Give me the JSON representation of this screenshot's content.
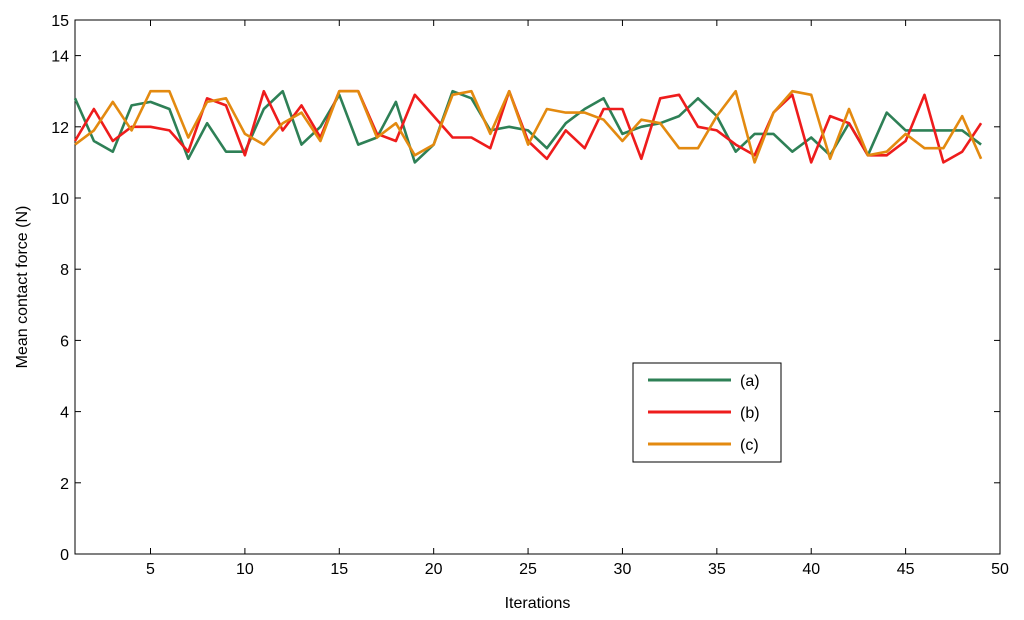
{
  "chart_data": {
    "type": "line",
    "xlabel": "Iterations",
    "ylabel": "Mean contact force (N)",
    "xlim": [
      1,
      50
    ],
    "ylim": [
      0,
      15
    ],
    "xticks": [
      5,
      10,
      15,
      20,
      25,
      30,
      35,
      40,
      45,
      50
    ],
    "yticks": [
      0,
      2,
      4,
      6,
      8,
      10,
      12,
      14,
      15
    ],
    "grid": false,
    "legend_position": "center-right",
    "x": [
      1,
      2,
      3,
      4,
      5,
      6,
      7,
      8,
      9,
      10,
      11,
      12,
      13,
      14,
      15,
      16,
      17,
      18,
      19,
      20,
      21,
      22,
      23,
      24,
      25,
      26,
      27,
      28,
      29,
      30,
      31,
      32,
      33,
      34,
      35,
      36,
      37,
      38,
      39,
      40,
      41,
      42,
      43,
      44,
      45,
      46,
      47,
      48,
      49
    ],
    "series": [
      {
        "name": "(a)",
        "color": "#2e8056",
        "values": [
          12.8,
          11.6,
          11.3,
          12.6,
          12.7,
          12.5,
          11.1,
          12.1,
          11.3,
          11.3,
          12.5,
          13.0,
          11.5,
          12.0,
          12.9,
          11.5,
          11.7,
          12.7,
          11.0,
          11.5,
          13.0,
          12.8,
          11.9,
          12.0,
          11.9,
          11.4,
          12.1,
          12.5,
          12.8,
          11.8,
          12.0,
          12.1,
          12.3,
          12.8,
          12.3,
          11.3,
          11.8,
          11.8,
          11.3,
          11.7,
          11.2,
          12.1,
          11.2,
          12.4,
          11.9,
          11.9,
          11.9,
          11.9,
          11.5
        ]
      },
      {
        "name": "(b)",
        "color": "#ee1c1c",
        "values": [
          11.6,
          12.5,
          11.6,
          12.0,
          12.0,
          11.9,
          11.3,
          12.8,
          12.6,
          11.2,
          13.0,
          11.9,
          12.6,
          11.7,
          13.0,
          13.0,
          11.8,
          11.6,
          12.9,
          12.3,
          11.7,
          11.7,
          11.4,
          13.0,
          11.6,
          11.1,
          11.9,
          11.4,
          12.5,
          12.5,
          11.1,
          12.8,
          12.9,
          12.0,
          11.9,
          11.5,
          11.2,
          12.4,
          12.9,
          11.0,
          12.3,
          12.1,
          11.2,
          11.2,
          11.6,
          12.9,
          11.0,
          11.3,
          12.1
        ]
      },
      {
        "name": "(c)",
        "color": "#e38a10",
        "values": [
          11.5,
          11.9,
          12.7,
          11.9,
          13.0,
          13.0,
          11.7,
          12.7,
          12.8,
          11.8,
          11.5,
          12.1,
          12.4,
          11.6,
          13.0,
          13.0,
          11.7,
          12.1,
          11.2,
          11.5,
          12.9,
          13.0,
          11.8,
          13.0,
          11.5,
          12.5,
          12.4,
          12.4,
          12.2,
          11.6,
          12.2,
          12.1,
          11.4,
          11.4,
          12.3,
          13.0,
          11.0,
          12.4,
          13.0,
          12.9,
          11.1,
          12.5,
          11.2,
          11.3,
          11.8,
          11.4,
          11.4,
          12.3,
          11.1
        ]
      }
    ]
  }
}
